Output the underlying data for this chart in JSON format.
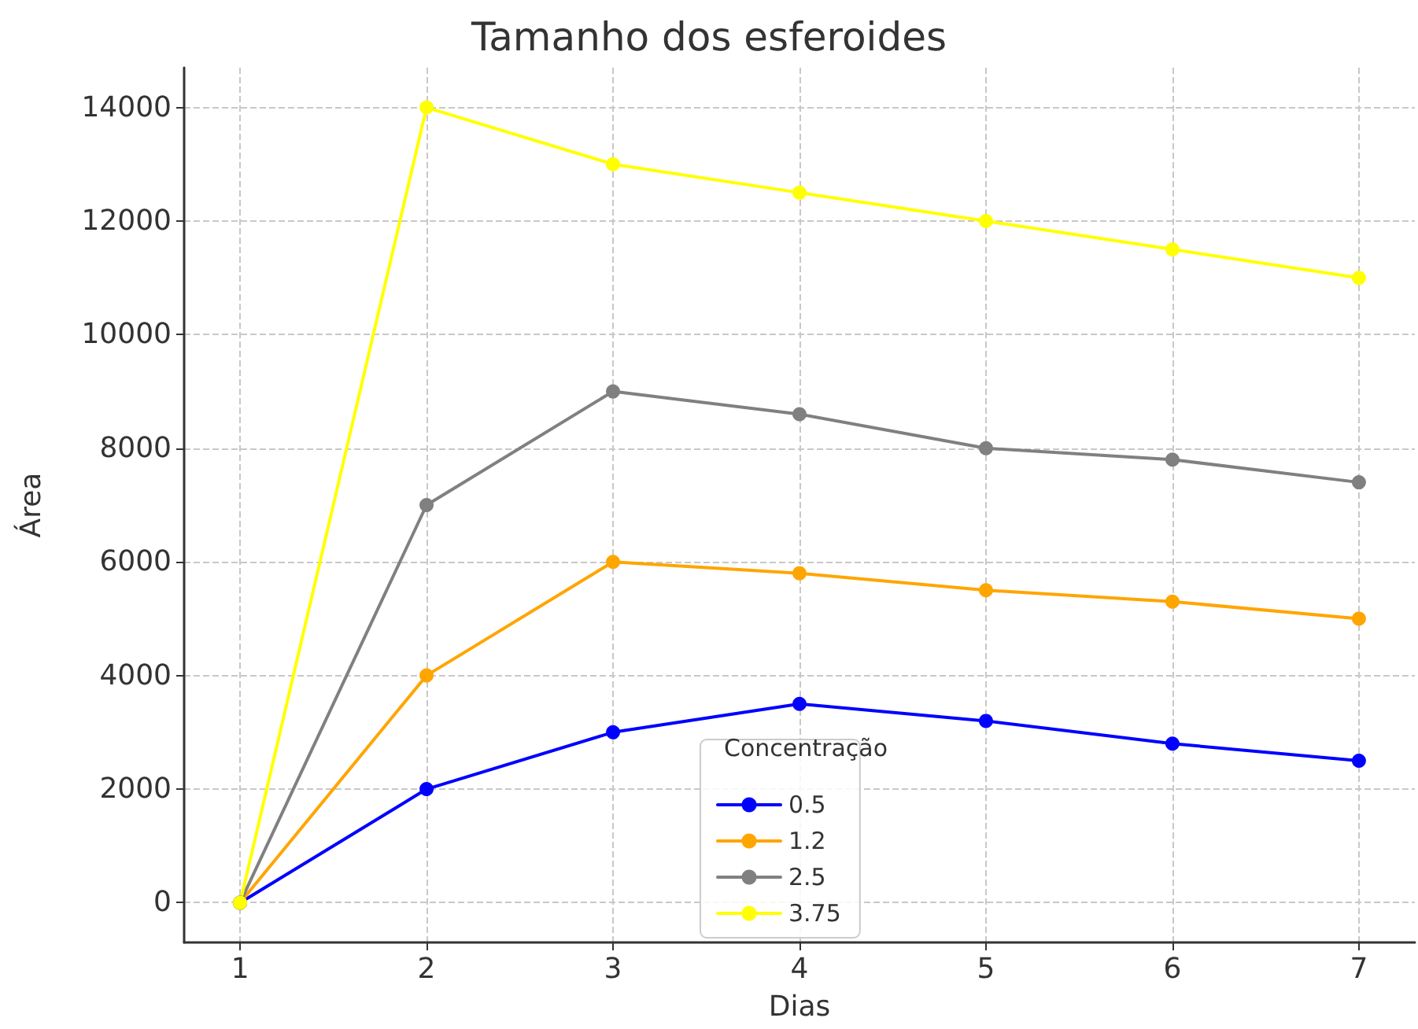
{
  "chart_data": {
    "type": "line",
    "title": "Tamanho dos esferoides",
    "xlabel": "Dias",
    "ylabel": "Área",
    "legend_title": "Concentração",
    "x": [
      1,
      2,
      3,
      4,
      5,
      6,
      7
    ],
    "series": [
      {
        "name": "0.5",
        "color": "#0000ff",
        "values": [
          0,
          2000,
          3000,
          3500,
          3200,
          2800,
          2500
        ]
      },
      {
        "name": "1.2",
        "color": "#ffa500",
        "values": [
          0,
          4000,
          6000,
          5800,
          5500,
          5300,
          5000
        ]
      },
      {
        "name": "2.5",
        "color": "#808080",
        "values": [
          0,
          7000,
          9000,
          8600,
          8000,
          7800,
          7400
        ]
      },
      {
        "name": "3.75",
        "color": "#ffff00",
        "values": [
          0,
          14000,
          13000,
          12500,
          12000,
          11500,
          11000
        ]
      }
    ],
    "xlim": [
      0.7,
      7.3
    ],
    "xticks": [
      1,
      2,
      3,
      4,
      5,
      6,
      7
    ],
    "ylim": [
      -700,
      14700
    ],
    "yticks": [
      0,
      2000,
      4000,
      6000,
      8000,
      10000,
      12000,
      14000
    ],
    "grid": true,
    "legend": "bottom",
    "marker": "circle",
    "line_style": "solid"
  }
}
